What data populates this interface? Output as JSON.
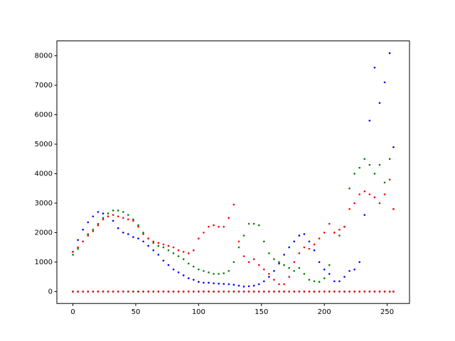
{
  "chart_data": {
    "type": "scatter",
    "x": [
      0,
      4,
      8,
      12,
      16,
      20,
      24,
      28,
      32,
      36,
      40,
      44,
      48,
      52,
      56,
      60,
      64,
      68,
      72,
      76,
      80,
      84,
      88,
      92,
      96,
      100,
      104,
      108,
      112,
      116,
      120,
      124,
      128,
      132,
      136,
      140,
      144,
      148,
      152,
      156,
      160,
      164,
      168,
      172,
      176,
      180,
      184,
      188,
      192,
      196,
      200,
      204,
      208,
      212,
      216,
      220,
      224,
      228,
      232,
      236,
      240,
      244,
      248,
      252,
      255
    ],
    "series": [
      {
        "color": "#0000ff",
        "values": [
          1350,
          1750,
          2100,
          2350,
          2550,
          2700,
          2650,
          2550,
          2400,
          2150,
          2000,
          1950,
          1850,
          1800,
          1700,
          1550,
          1400,
          1250,
          1050,
          900,
          750,
          650,
          550,
          450,
          400,
          330,
          300,
          300,
          280,
          270,
          260,
          250,
          230,
          200,
          170,
          180,
          200,
          250,
          350,
          500,
          700,
          950,
          1250,
          1500,
          1700,
          1900,
          1950,
          1700,
          1400,
          1000,
          750,
          600,
          350,
          350,
          500,
          700,
          750,
          1000,
          2600,
          5800,
          7600,
          6400,
          7100,
          8090,
          4900
        ]
      },
      {
        "color": "#008000",
        "values": [
          1250,
          1450,
          1700,
          1950,
          2100,
          2300,
          2500,
          2650,
          2750,
          2750,
          2700,
          2600,
          2450,
          2250,
          2000,
          1800,
          1650,
          1550,
          1500,
          1400,
          1300,
          1200,
          1100,
          950,
          850,
          750,
          700,
          650,
          600,
          600,
          620,
          700,
          1000,
          1500,
          1900,
          2300,
          2300,
          2250,
          1700,
          1300,
          1100,
          1000,
          900,
          800,
          700,
          800,
          600,
          400,
          350,
          330,
          450,
          900,
          2000,
          1900,
          2200,
          3500,
          4000,
          4200,
          4500,
          4300,
          4000,
          4300,
          3700,
          4500,
          2800
        ]
      },
      {
        "color": "#ff0000",
        "values": [
          1350,
          1500,
          1700,
          1900,
          2050,
          2250,
          2450,
          2550,
          2600,
          2550,
          2500,
          2450,
          2400,
          2200,
          1950,
          1800,
          1700,
          1650,
          1600,
          1550,
          1500,
          1400,
          1350,
          1300,
          1400,
          1800,
          2000,
          2200,
          2250,
          2200,
          2200,
          2500,
          2950,
          1700,
          1200,
          1000,
          1100,
          900,
          750,
          600,
          400,
          250,
          250,
          500,
          1000,
          1300,
          1500,
          1450,
          1600,
          1800,
          2000,
          2300,
          2000,
          2100,
          2200,
          2800,
          3000,
          3300,
          3400,
          3300,
          3200,
          3000,
          3300,
          3800,
          2800
        ]
      },
      {
        "color": "#0000ff",
        "values": [
          0,
          0,
          0,
          0,
          0,
          0,
          0,
          0,
          0,
          0,
          0,
          0,
          0,
          0,
          0,
          0,
          0,
          0,
          0,
          0,
          0,
          0,
          0,
          0,
          0,
          0,
          0,
          0,
          0,
          0,
          0,
          0,
          0,
          0,
          0,
          0,
          0,
          0,
          0,
          0,
          0,
          0,
          0,
          0,
          0,
          0,
          0,
          0,
          0,
          0,
          0,
          0,
          0,
          0,
          0,
          0,
          0,
          0,
          0,
          0,
          0,
          0,
          0,
          0,
          0
        ]
      },
      {
        "color": "#008000",
        "values": [
          0,
          0,
          0,
          0,
          0,
          0,
          0,
          0,
          0,
          0,
          0,
          0,
          0,
          0,
          0,
          0,
          0,
          0,
          0,
          0,
          0,
          0,
          0,
          0,
          0,
          0,
          0,
          0,
          0,
          0,
          0,
          0,
          0,
          0,
          0,
          0,
          0,
          0,
          0,
          0,
          0,
          0,
          0,
          0,
          0,
          0,
          0,
          0,
          0,
          0,
          0,
          0,
          0,
          0,
          0,
          0,
          0,
          0,
          0,
          0,
          0,
          0,
          0,
          0,
          0
        ]
      },
      {
        "color": "#ff0000",
        "values": [
          0,
          0,
          0,
          0,
          0,
          0,
          0,
          0,
          0,
          0,
          0,
          0,
          0,
          0,
          0,
          0,
          0,
          0,
          0,
          0,
          0,
          0,
          0,
          0,
          0,
          0,
          0,
          0,
          0,
          0,
          0,
          0,
          0,
          0,
          0,
          0,
          0,
          0,
          0,
          0,
          0,
          0,
          0,
          0,
          0,
          0,
          0,
          0,
          0,
          0,
          0,
          0,
          0,
          0,
          0,
          0,
          0,
          0,
          0,
          0,
          0,
          0,
          0,
          0,
          0
        ]
      }
    ],
    "xlim": [
      -12.75,
      267.75
    ],
    "ylim": [
      -405,
      8505
    ],
    "xticks": [
      0,
      50,
      100,
      150,
      200,
      250
    ],
    "yticks": [
      0,
      1000,
      2000,
      3000,
      4000,
      5000,
      6000,
      7000,
      8000
    ]
  }
}
